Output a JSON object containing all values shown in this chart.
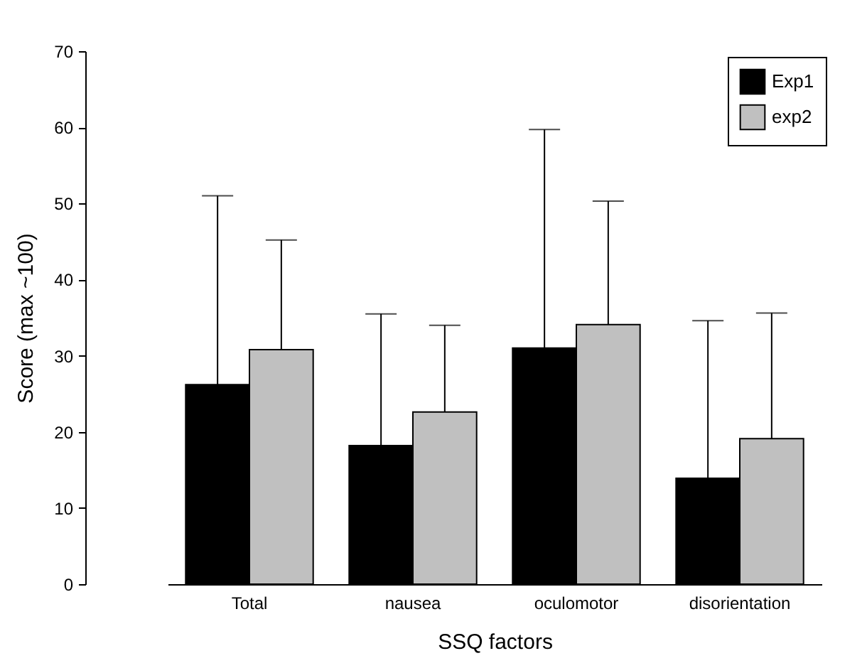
{
  "chart_data": {
    "type": "bar",
    "xlabel": "SSQ factors",
    "ylabel": "Score (max ~100)",
    "categories": [
      "Total",
      "nausea",
      "oculomotor",
      "disorientation"
    ],
    "series": [
      {
        "name": "Exp1",
        "color": "#000000",
        "values": [
          26.2,
          18.2,
          31.0,
          13.9
        ],
        "errors": [
          [
            26.2,
            51.0
          ],
          [
            18.2,
            35.5
          ],
          [
            31.0,
            59.7
          ],
          [
            13.9,
            34.6
          ]
        ]
      },
      {
        "name": "exp2",
        "color": "#c0c0c0",
        "values": [
          30.8,
          22.6,
          34.1,
          19.1
        ],
        "errors": [
          [
            30.8,
            45.2
          ],
          [
            22.6,
            34.0
          ],
          [
            34.1,
            50.3
          ],
          [
            19.1,
            35.6
          ]
        ]
      }
    ],
    "ylim": [
      0,
      70
    ],
    "yticks": [
      0,
      10,
      20,
      30,
      40,
      50,
      60,
      70
    ],
    "grid": false,
    "legend": "top right"
  }
}
